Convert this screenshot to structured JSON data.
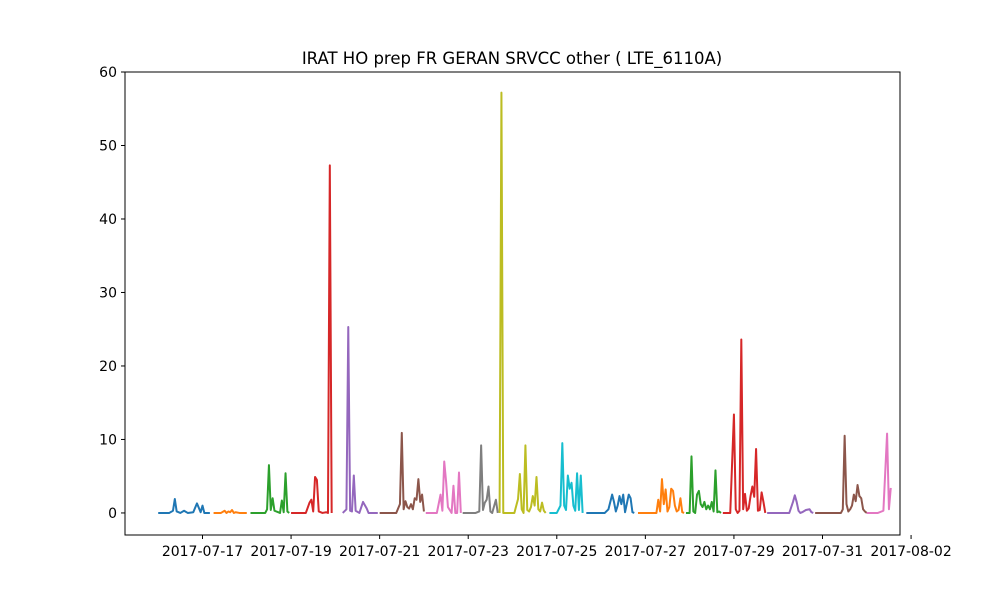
{
  "chart_data": {
    "type": "line",
    "title": "IRAT HO prep FR GERAN SRVCC other ( LTE_6110A)",
    "xlabel": "",
    "ylabel": "",
    "xlim": [
      "2017-07-15T06:00",
      "2017-08-01T18:00"
    ],
    "ylim": [
      -3,
      60
    ],
    "xticks": [
      "2017-07-17",
      "2017-07-19",
      "2017-07-21",
      "2017-07-23",
      "2017-07-25",
      "2017-07-27",
      "2017-07-29",
      "2017-07-31",
      "2017-08-02"
    ],
    "yticks": [
      0,
      10,
      20,
      30,
      40,
      50,
      60
    ],
    "grid": false,
    "legend": "none",
    "series": [
      {
        "color": "#1f77b4",
        "points": [
          [
            "2017-07-16T00:00",
            0
          ],
          [
            "2017-07-16T06:00",
            0
          ],
          [
            "2017-07-16T08:00",
            0.3
          ],
          [
            "2017-07-16T09:00",
            1.9
          ],
          [
            "2017-07-16T10:00",
            0.2
          ],
          [
            "2017-07-16T12:00",
            0
          ],
          [
            "2017-07-16T14:00",
            0.3
          ],
          [
            "2017-07-16T16:00",
            0
          ],
          [
            "2017-07-16T19:00",
            0.1
          ],
          [
            "2017-07-16T21:00",
            1.3
          ],
          [
            "2017-07-16T23:00",
            0.1
          ],
          [
            "2017-07-17T00:00",
            1.0
          ],
          [
            "2017-07-17T01:00",
            0
          ],
          [
            "2017-07-17T02:00",
            0
          ],
          [
            "2017-07-17T04:00",
            0
          ]
        ]
      },
      {
        "color": "#ff7f0e",
        "points": [
          [
            "2017-07-17T06:00",
            0
          ],
          [
            "2017-07-17T10:00",
            0
          ],
          [
            "2017-07-17T12:00",
            0.3
          ],
          [
            "2017-07-17T13:00",
            0
          ],
          [
            "2017-07-17T14:00",
            0.2
          ],
          [
            "2017-07-17T15:00",
            0.1
          ],
          [
            "2017-07-17T16:00",
            0.4
          ],
          [
            "2017-07-17T17:00",
            0
          ],
          [
            "2017-07-17T18:00",
            0.1
          ],
          [
            "2017-07-17T20:00",
            0
          ],
          [
            "2017-07-18T00:00",
            0
          ]
        ]
      },
      {
        "color": "#2ca02c",
        "points": [
          [
            "2017-07-18T02:00",
            0
          ],
          [
            "2017-07-18T10:00",
            0
          ],
          [
            "2017-07-18T11:00",
            0.5
          ],
          [
            "2017-07-18T12:00",
            6.5
          ],
          [
            "2017-07-18T13:00",
            0.4
          ],
          [
            "2017-07-18T14:00",
            2.0
          ],
          [
            "2017-07-18T15:00",
            0.3
          ],
          [
            "2017-07-18T17:00",
            0.1
          ],
          [
            "2017-07-18T18:00",
            0
          ],
          [
            "2017-07-18T19:00",
            1.7
          ],
          [
            "2017-07-18T20:00",
            0.1
          ],
          [
            "2017-07-18T21:00",
            5.4
          ],
          [
            "2017-07-18T22:00",
            0.2
          ],
          [
            "2017-07-18T23:00",
            0
          ]
        ]
      },
      {
        "color": "#d62728",
        "points": [
          [
            "2017-07-19T00:00",
            0
          ],
          [
            "2017-07-19T08:00",
            0
          ],
          [
            "2017-07-19T10:00",
            1.4
          ],
          [
            "2017-07-19T11:00",
            1.8
          ],
          [
            "2017-07-19T12:00",
            0.2
          ],
          [
            "2017-07-19T13:00",
            4.9
          ],
          [
            "2017-07-19T14:00",
            4.5
          ],
          [
            "2017-07-19T15:00",
            0.2
          ],
          [
            "2017-07-19T17:00",
            0
          ],
          [
            "2017-07-19T19:00",
            0.1
          ],
          [
            "2017-07-19T20:00",
            0
          ],
          [
            "2017-07-19T21:00",
            47.3
          ],
          [
            "2017-07-19T22:00",
            0
          ]
        ]
      },
      {
        "color": "#9467bd",
        "points": [
          [
            "2017-07-20T04:00",
            0
          ],
          [
            "2017-07-20T06:00",
            0.5
          ],
          [
            "2017-07-20T07:00",
            25.3
          ],
          [
            "2017-07-20T08:00",
            0.3
          ],
          [
            "2017-07-20T09:00",
            0.2
          ],
          [
            "2017-07-20T10:00",
            5.1
          ],
          [
            "2017-07-20T11:00",
            0.3
          ],
          [
            "2017-07-20T13:00",
            0
          ],
          [
            "2017-07-20T15:00",
            1.5
          ],
          [
            "2017-07-20T17:00",
            0.6
          ],
          [
            "2017-07-20T18:00",
            0
          ],
          [
            "2017-07-20T23:00",
            0
          ]
        ]
      },
      {
        "color": "#8c564b",
        "points": [
          [
            "2017-07-21T00:00",
            0
          ],
          [
            "2017-07-21T09:00",
            0
          ],
          [
            "2017-07-21T11:00",
            1.2
          ],
          [
            "2017-07-21T12:00",
            10.9
          ],
          [
            "2017-07-21T13:00",
            0.5
          ],
          [
            "2017-07-21T14:00",
            1.6
          ],
          [
            "2017-07-21T15:00",
            0.8
          ],
          [
            "2017-07-21T16:00",
            0.6
          ],
          [
            "2017-07-21T17:00",
            1.2
          ],
          [
            "2017-07-21T18:00",
            0.5
          ],
          [
            "2017-07-21T19:00",
            2.0
          ],
          [
            "2017-07-21T20:00",
            1.8
          ],
          [
            "2017-07-21T21:00",
            4.6
          ],
          [
            "2017-07-21T22:00",
            1.5
          ],
          [
            "2017-07-21T23:00",
            2.5
          ],
          [
            "2017-07-22T00:00",
            0.2
          ]
        ]
      },
      {
        "color": "#e377c2",
        "points": [
          [
            "2017-07-22T01:00",
            0
          ],
          [
            "2017-07-22T07:00",
            0
          ],
          [
            "2017-07-22T09:00",
            2.5
          ],
          [
            "2017-07-22T10:00",
            0.3
          ],
          [
            "2017-07-22T11:00",
            7.0
          ],
          [
            "2017-07-22T12:00",
            4.3
          ],
          [
            "2017-07-22T13:00",
            0.8
          ],
          [
            "2017-07-22T15:00",
            0
          ],
          [
            "2017-07-22T16:00",
            3.7
          ],
          [
            "2017-07-22T17:00",
            0
          ],
          [
            "2017-07-22T18:00",
            0
          ],
          [
            "2017-07-22T19:00",
            5.5
          ],
          [
            "2017-07-22T20:00",
            0
          ]
        ]
      },
      {
        "color": "#7f7f7f",
        "points": [
          [
            "2017-07-22T21:00",
            0
          ],
          [
            "2017-07-23T04:00",
            0
          ],
          [
            "2017-07-23T06:00",
            0.2
          ],
          [
            "2017-07-23T07:00",
            9.2
          ],
          [
            "2017-07-23T08:00",
            0.4
          ],
          [
            "2017-07-23T09:00",
            1.4
          ],
          [
            "2017-07-23T10:00",
            1.8
          ],
          [
            "2017-07-23T11:00",
            3.6
          ],
          [
            "2017-07-23T12:00",
            0.2
          ],
          [
            "2017-07-23T13:00",
            0
          ],
          [
            "2017-07-23T15:00",
            1.8
          ],
          [
            "2017-07-23T16:00",
            0
          ]
        ]
      },
      {
        "color": "#bcbd22",
        "points": [
          [
            "2017-07-23T17:00",
            0
          ],
          [
            "2017-07-23T18:00",
            57.2
          ],
          [
            "2017-07-23T19:00",
            0
          ],
          [
            "2017-07-24T01:00",
            0
          ],
          [
            "2017-07-24T03:00",
            1.9
          ],
          [
            "2017-07-24T04:00",
            5.3
          ],
          [
            "2017-07-24T05:00",
            0.5
          ],
          [
            "2017-07-24T06:00",
            0
          ],
          [
            "2017-07-24T07:00",
            9.2
          ],
          [
            "2017-07-24T08:00",
            0.4
          ],
          [
            "2017-07-24T09:00",
            0.2
          ],
          [
            "2017-07-24T10:00",
            0.8
          ],
          [
            "2017-07-24T11:00",
            2.3
          ],
          [
            "2017-07-24T12:00",
            1.0
          ],
          [
            "2017-07-24T13:00",
            4.9
          ],
          [
            "2017-07-24T14:00",
            0.5
          ],
          [
            "2017-07-24T15:00",
            0.2
          ],
          [
            "2017-07-24T16:00",
            1.4
          ],
          [
            "2017-07-24T17:00",
            0.3
          ],
          [
            "2017-07-24T18:00",
            0
          ]
        ]
      },
      {
        "color": "#17becf",
        "points": [
          [
            "2017-07-24T20:00",
            0
          ],
          [
            "2017-07-25T00:00",
            0
          ],
          [
            "2017-07-25T02:00",
            1.0
          ],
          [
            "2017-07-25T03:00",
            9.5
          ],
          [
            "2017-07-25T04:00",
            1.0
          ],
          [
            "2017-07-25T05:00",
            0.4
          ],
          [
            "2017-07-25T06:00",
            5.1
          ],
          [
            "2017-07-25T07:00",
            3.3
          ],
          [
            "2017-07-25T08:00",
            4.1
          ],
          [
            "2017-07-25T09:00",
            1.0
          ],
          [
            "2017-07-25T10:00",
            0.3
          ],
          [
            "2017-07-25T11:00",
            5.4
          ],
          [
            "2017-07-25T12:00",
            0.4
          ],
          [
            "2017-07-25T13:00",
            5.1
          ],
          [
            "2017-07-25T14:00",
            0
          ]
        ]
      },
      {
        "color": "#1f77b4",
        "points": [
          [
            "2017-07-25T16:00",
            0
          ],
          [
            "2017-07-26T02:00",
            0
          ],
          [
            "2017-07-26T04:00",
            0.5
          ],
          [
            "2017-07-26T06:00",
            2.5
          ],
          [
            "2017-07-26T07:00",
            1.5
          ],
          [
            "2017-07-26T08:00",
            0.2
          ],
          [
            "2017-07-26T09:00",
            1.0
          ],
          [
            "2017-07-26T10:00",
            2.3
          ],
          [
            "2017-07-26T11:00",
            1.2
          ],
          [
            "2017-07-26T12:00",
            2.5
          ],
          [
            "2017-07-26T13:00",
            0.1
          ],
          [
            "2017-07-26T15:00",
            2.5
          ],
          [
            "2017-07-26T16:00",
            2.0
          ],
          [
            "2017-07-26T17:00",
            0.1
          ],
          [
            "2017-07-26T18:00",
            0
          ]
        ]
      },
      {
        "color": "#ff7f0e",
        "points": [
          [
            "2017-07-26T20:00",
            0
          ],
          [
            "2017-07-27T06:00",
            0
          ],
          [
            "2017-07-27T07:00",
            1.8
          ],
          [
            "2017-07-27T08:00",
            0.2
          ],
          [
            "2017-07-27T09:00",
            4.6
          ],
          [
            "2017-07-27T10:00",
            1.2
          ],
          [
            "2017-07-27T11:00",
            3.2
          ],
          [
            "2017-07-27T12:00",
            0.2
          ],
          [
            "2017-07-27T13:00",
            0.8
          ],
          [
            "2017-07-27T14:00",
            3.3
          ],
          [
            "2017-07-27T15:00",
            3.0
          ],
          [
            "2017-07-27T16:00",
            1.0
          ],
          [
            "2017-07-27T17:00",
            0.2
          ],
          [
            "2017-07-27T18:00",
            0.4
          ],
          [
            "2017-07-27T19:00",
            2.0
          ],
          [
            "2017-07-27T20:00",
            0.1
          ],
          [
            "2017-07-27T21:00",
            0
          ]
        ]
      },
      {
        "color": "#2ca02c",
        "points": [
          [
            "2017-07-27T22:00",
            0
          ],
          [
            "2017-07-28T00:00",
            0
          ],
          [
            "2017-07-28T01:00",
            7.7
          ],
          [
            "2017-07-28T02:00",
            0.2
          ],
          [
            "2017-07-28T03:00",
            0
          ],
          [
            "2017-07-28T04:00",
            2.5
          ],
          [
            "2017-07-28T05:00",
            3.0
          ],
          [
            "2017-07-28T06:00",
            1.2
          ],
          [
            "2017-07-28T07:00",
            0.8
          ],
          [
            "2017-07-28T08:00",
            1.5
          ],
          [
            "2017-07-28T09:00",
            0.5
          ],
          [
            "2017-07-28T10:00",
            1.0
          ],
          [
            "2017-07-28T11:00",
            0.5
          ],
          [
            "2017-07-28T12:00",
            1.5
          ],
          [
            "2017-07-28T13:00",
            0.2
          ],
          [
            "2017-07-28T14:00",
            5.8
          ],
          [
            "2017-07-28T15:00",
            0.1
          ],
          [
            "2017-07-28T16:00",
            0.2
          ],
          [
            "2017-07-28T17:00",
            0
          ]
        ]
      },
      {
        "color": "#d62728",
        "points": [
          [
            "2017-07-28T18:00",
            0
          ],
          [
            "2017-07-28T22:00",
            0
          ],
          [
            "2017-07-29T00:00",
            13.4
          ],
          [
            "2017-07-29T01:00",
            0.5
          ],
          [
            "2017-07-29T02:00",
            0
          ],
          [
            "2017-07-29T03:00",
            0.3
          ],
          [
            "2017-07-29T04:00",
            23.6
          ],
          [
            "2017-07-29T05:00",
            0.5
          ],
          [
            "2017-07-29T06:00",
            2.6
          ],
          [
            "2017-07-29T07:00",
            0.3
          ],
          [
            "2017-07-29T08:00",
            0.6
          ],
          [
            "2017-07-29T09:00",
            2.3
          ],
          [
            "2017-07-29T10:00",
            3.6
          ],
          [
            "2017-07-29T11:00",
            2.2
          ],
          [
            "2017-07-29T12:00",
            8.7
          ],
          [
            "2017-07-29T13:00",
            0.3
          ],
          [
            "2017-07-29T14:00",
            0.4
          ],
          [
            "2017-07-29T15:00",
            2.8
          ],
          [
            "2017-07-29T16:00",
            1.5
          ],
          [
            "2017-07-29T17:00",
            0
          ]
        ]
      },
      {
        "color": "#9467bd",
        "points": [
          [
            "2017-07-29T18:00",
            0
          ],
          [
            "2017-07-30T06:00",
            0
          ],
          [
            "2017-07-30T08:00",
            1.5
          ],
          [
            "2017-07-30T09:00",
            2.4
          ],
          [
            "2017-07-30T10:00",
            1.5
          ],
          [
            "2017-07-30T11:00",
            0.3
          ],
          [
            "2017-07-30T12:00",
            0
          ],
          [
            "2017-07-30T13:00",
            0.1
          ],
          [
            "2017-07-30T15:00",
            0.4
          ],
          [
            "2017-07-30T17:00",
            0.5
          ],
          [
            "2017-07-30T18:00",
            0.1
          ],
          [
            "2017-07-30T19:00",
            0
          ]
        ]
      },
      {
        "color": "#8c564b",
        "points": [
          [
            "2017-07-30T20:00",
            0
          ],
          [
            "2017-07-31T10:00",
            0
          ],
          [
            "2017-07-31T11:00",
            0.5
          ],
          [
            "2017-07-31T12:00",
            10.5
          ],
          [
            "2017-07-31T13:00",
            1.2
          ],
          [
            "2017-07-31T14:00",
            0.2
          ],
          [
            "2017-07-31T15:00",
            0.5
          ],
          [
            "2017-07-31T16:00",
            1.0
          ],
          [
            "2017-07-31T17:00",
            2.5
          ],
          [
            "2017-07-31T18:00",
            1.6
          ],
          [
            "2017-07-31T19:00",
            3.8
          ],
          [
            "2017-07-31T20:00",
            2.3
          ],
          [
            "2017-07-31T21:00",
            2.0
          ],
          [
            "2017-07-31T22:00",
            0.5
          ],
          [
            "2017-07-31T23:00",
            0.2
          ],
          [
            "2017-08-01T00:00",
            0
          ]
        ]
      },
      {
        "color": "#e377c2",
        "points": [
          [
            "2017-08-01T00:00",
            0
          ],
          [
            "2017-08-01T06:00",
            0
          ],
          [
            "2017-08-01T09:00",
            0.3
          ],
          [
            "2017-08-01T11:00",
            10.8
          ],
          [
            "2017-08-01T12:00",
            0.5
          ],
          [
            "2017-08-01T13:00",
            3.4
          ]
        ]
      }
    ]
  }
}
